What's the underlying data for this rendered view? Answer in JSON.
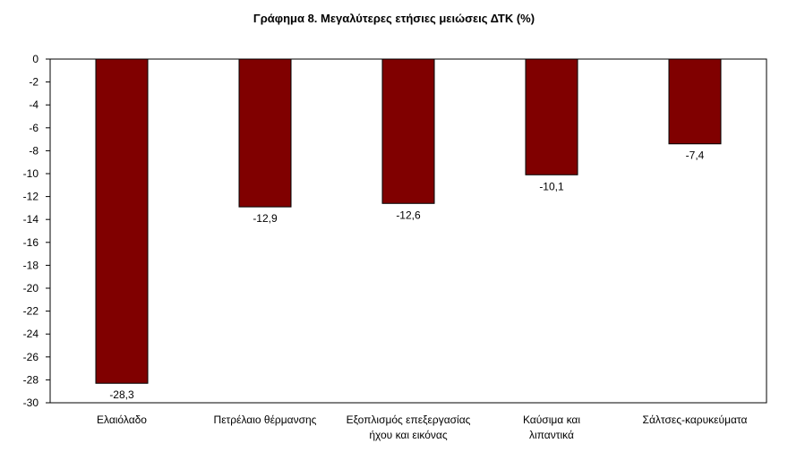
{
  "chart_data": {
    "type": "bar",
    "title": "Γράφημα 8. Μεγαλύτερες ετήσιες μειώσεις ΔΤΚ (%)",
    "xlabel": "",
    "ylabel": "",
    "ylim": [
      -30,
      0
    ],
    "yticks": [
      0,
      -2,
      -4,
      -6,
      -8,
      -10,
      -12,
      -14,
      -16,
      -18,
      -20,
      -22,
      -24,
      -26,
      -28,
      -30
    ],
    "grid": false,
    "bar_color": "#800000",
    "categories": [
      [
        "Ελαιόλαδο"
      ],
      [
        "Πετρέλαιο θέρμανσης"
      ],
      [
        "Εξοπλισμός επεξεργασίας",
        "ήχου και εικόνας"
      ],
      [
        "Καύσιμα και",
        "λιπαντικά"
      ],
      [
        "Σάλτσες-καρυκεύματα"
      ]
    ],
    "values": [
      -28.3,
      -12.9,
      -12.6,
      -10.1,
      -7.4
    ],
    "data_labels": [
      "-28,3",
      "-12,9",
      "-12,6",
      "-10,1",
      "-7,4"
    ]
  }
}
